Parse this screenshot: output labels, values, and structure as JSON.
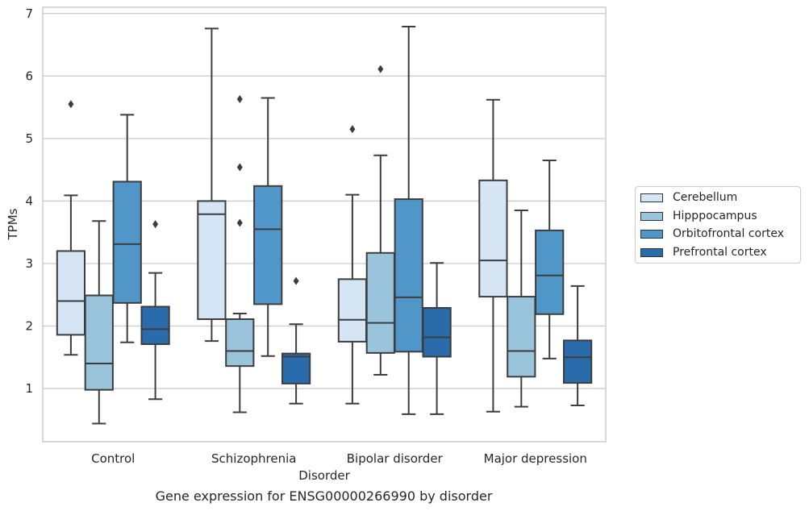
{
  "caption": "Gene expression for ENSG00000266990 by disorder",
  "chart_data": {
    "type": "box",
    "xlabel": "Disorder",
    "ylabel": "TPMs",
    "ylim": [
      0.15,
      7.1
    ],
    "yticks": [
      1,
      2,
      3,
      4,
      5,
      6,
      7
    ],
    "grid": "horizontal",
    "legend_position": "right",
    "categories": [
      "Control",
      "Schizophrenia",
      "Bipolar disorder",
      "Major depression"
    ],
    "series": [
      {
        "name": "Cerebellum",
        "color": "#d6e5f4",
        "boxes": [
          {
            "whislo": 1.54,
            "q1": 1.86,
            "med": 2.4,
            "q3": 3.2,
            "whishi": 4.09,
            "fliers": [
              5.55
            ]
          },
          {
            "whislo": 1.76,
            "q1": 2.11,
            "med": 3.79,
            "q3": 4.0,
            "whishi": 6.76,
            "fliers": []
          },
          {
            "whislo": 0.76,
            "q1": 1.75,
            "med": 2.1,
            "q3": 2.75,
            "whishi": 4.1,
            "fliers": [
              5.15
            ]
          },
          {
            "whislo": 0.63,
            "q1": 2.47,
            "med": 3.05,
            "q3": 4.33,
            "whishi": 5.62,
            "fliers": []
          }
        ]
      },
      {
        "name": "Hipppocampus",
        "color": "#9ac3dc",
        "boxes": [
          {
            "whislo": 0.44,
            "q1": 0.98,
            "med": 1.4,
            "q3": 2.49,
            "whishi": 3.68,
            "fliers": []
          },
          {
            "whislo": 0.62,
            "q1": 1.36,
            "med": 1.6,
            "q3": 2.11,
            "whishi": 2.2,
            "fliers": [
              3.65,
              4.54,
              5.63
            ]
          },
          {
            "whislo": 1.22,
            "q1": 1.57,
            "med": 2.05,
            "q3": 3.17,
            "whishi": 4.73,
            "fliers": [
              6.11
            ]
          },
          {
            "whislo": 0.71,
            "q1": 1.19,
            "med": 1.6,
            "q3": 2.47,
            "whishi": 3.85,
            "fliers": []
          }
        ]
      },
      {
        "name": "Orbitofrontal cortex",
        "color": "#5096c8",
        "boxes": [
          {
            "whislo": 1.74,
            "q1": 2.37,
            "med": 3.31,
            "q3": 4.31,
            "whishi": 5.38,
            "fliers": []
          },
          {
            "whislo": 1.52,
            "q1": 2.35,
            "med": 3.55,
            "q3": 4.24,
            "whishi": 5.65,
            "fliers": []
          },
          {
            "whislo": 0.59,
            "q1": 1.59,
            "med": 2.46,
            "q3": 4.03,
            "whishi": 6.79,
            "fliers": []
          },
          {
            "whislo": 1.48,
            "q1": 2.19,
            "med": 2.81,
            "q3": 3.53,
            "whishi": 4.65,
            "fliers": []
          }
        ]
      },
      {
        "name": "Prefrontal cortex",
        "color": "#2a6bac",
        "boxes": [
          {
            "whislo": 0.83,
            "q1": 1.71,
            "med": 1.95,
            "q3": 2.31,
            "whishi": 2.85,
            "fliers": [
              3.63
            ]
          },
          {
            "whislo": 0.76,
            "q1": 1.08,
            "med": 1.51,
            "q3": 1.56,
            "whishi": 2.03,
            "fliers": [
              2.72
            ]
          },
          {
            "whislo": 0.59,
            "q1": 1.51,
            "med": 1.82,
            "q3": 2.29,
            "whishi": 3.01,
            "fliers": []
          },
          {
            "whislo": 0.73,
            "q1": 1.09,
            "med": 1.5,
            "q3": 1.77,
            "whishi": 2.64,
            "fliers": []
          }
        ]
      }
    ]
  }
}
